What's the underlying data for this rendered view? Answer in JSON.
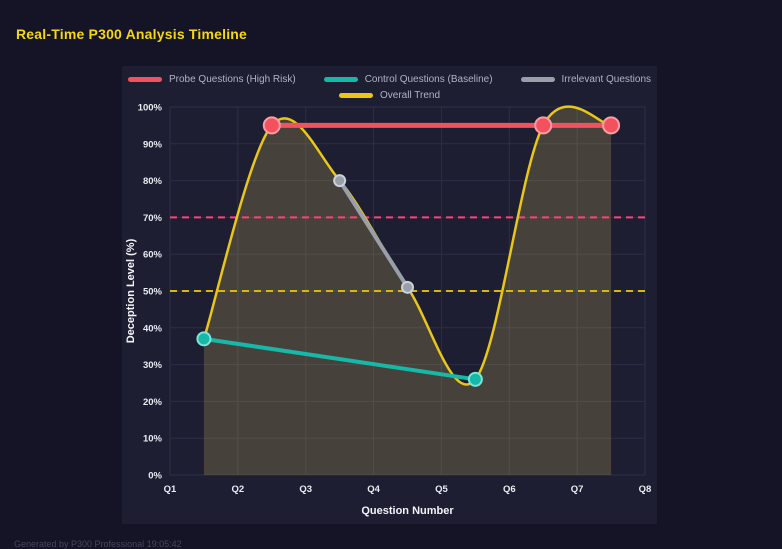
{
  "title": "Real-Time P300 Analysis Timeline",
  "footer": "Generated by P300 Professional  19:05:42",
  "chart_data": {
    "type": "line",
    "title": "Real-Time P300 Analysis Timeline",
    "xlabel": "Question Number",
    "ylabel": "Deception Level (%)",
    "x_ticks": [
      "Q1",
      "Q2",
      "Q3",
      "Q4",
      "Q5",
      "Q6",
      "Q7",
      "Q8"
    ],
    "x_range": [
      1,
      8
    ],
    "y_range": [
      0,
      100
    ],
    "y_ticks": [
      0,
      10,
      20,
      30,
      40,
      50,
      60,
      70,
      80,
      90,
      100
    ],
    "grid": true,
    "legend_position": "top",
    "legend_rows": [
      [
        0,
        1,
        2
      ],
      [
        3
      ]
    ],
    "series": [
      {
        "name": "Probe Questions (High Risk)",
        "color": "#f4515e",
        "ring": "#f99ca4",
        "width": 5,
        "marker_r": 8,
        "smooth": false,
        "x": [
          2.5,
          6.5,
          7.5
        ],
        "y": [
          95,
          95,
          95
        ]
      },
      {
        "name": "Control Questions (Baseline)",
        "color": "#16b8a8",
        "ring": "#7ce4d8",
        "width": 4,
        "marker_r": 6.5,
        "smooth": false,
        "x": [
          1.5,
          5.5
        ],
        "y": [
          37,
          26
        ]
      },
      {
        "name": "Irrelevant Questions",
        "color": "#999fa8",
        "ring": "#ccd1d9",
        "width": 4,
        "marker_r": 5.5,
        "smooth": false,
        "x": [
          3.5,
          4.5
        ],
        "y": [
          80,
          51
        ]
      },
      {
        "name": "Overall Trend",
        "color": "#e9c619",
        "ring": "#e9c619",
        "width": 2.5,
        "marker_r": 0,
        "smooth": true,
        "fill": "rgba(216,196,92,0.22)",
        "x": [
          1.5,
          2.5,
          3.5,
          4.5,
          5.5,
          6.5,
          7.5
        ],
        "y": [
          37,
          95,
          80,
          51,
          26,
          95,
          95
        ]
      }
    ],
    "thresholds": [
      {
        "y": 70,
        "color": "#f2487a"
      },
      {
        "y": 50,
        "color": "#d9b70d"
      }
    ],
    "grid_color": "#2d2d47",
    "tick_color": "#e9ecf2",
    "axis_title_color": "#f2f4f8"
  }
}
